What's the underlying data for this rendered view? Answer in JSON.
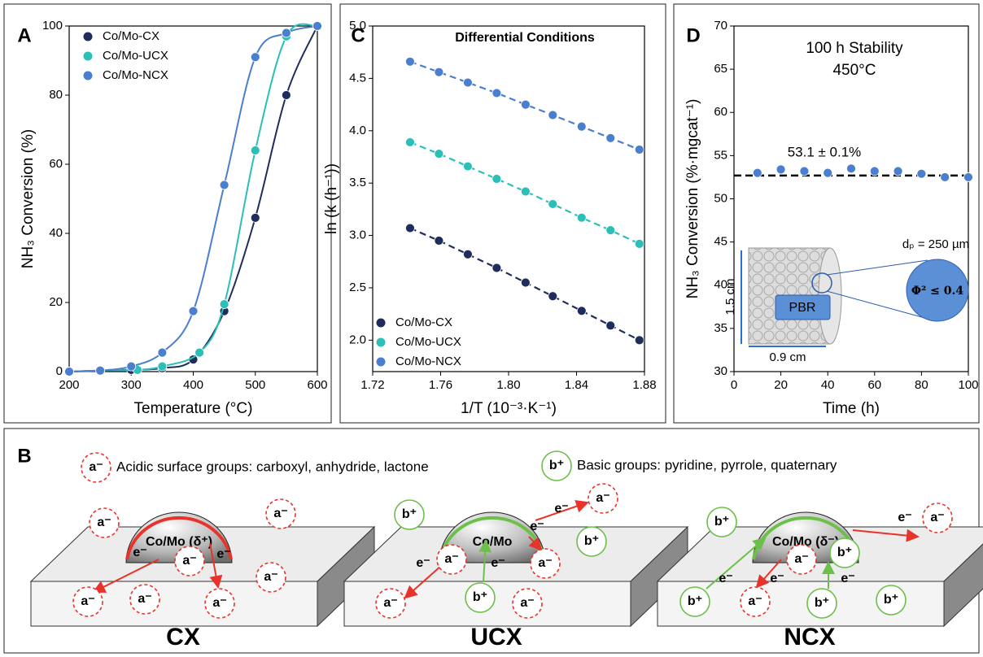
{
  "chart_data": [
    {
      "type": "line",
      "panel": "A",
      "xlabel": "Temperature (°C)",
      "ylabel": "NH₃ Conversion (%)",
      "xlim": [
        200,
        600
      ],
      "ylim": [
        0,
        100
      ],
      "xticks": [
        200,
        300,
        400,
        500,
        600
      ],
      "yticks": [
        0,
        20,
        40,
        60,
        80,
        100
      ],
      "legend": "upper left",
      "series": [
        {
          "name": "Co/Mo-CX",
          "color": "#1f2d5c",
          "x": [
            200,
            250,
            300,
            350,
            400,
            450,
            500,
            550,
            600
          ],
          "values": [
            0,
            0.3,
            0.5,
            1,
            3.5,
            17.5,
            44.5,
            80,
            100
          ]
        },
        {
          "name": "Co/Mo-UCX",
          "color": "#2bbfb8",
          "x": [
            200,
            250,
            310,
            350,
            410,
            450,
            500,
            550,
            600
          ],
          "values": [
            0,
            0.3,
            0.5,
            1.5,
            5.5,
            19.5,
            64,
            97,
            100
          ]
        },
        {
          "name": "Co/Mo-NCX",
          "color": "#4a7fcf",
          "x": [
            200,
            250,
            300,
            350,
            400,
            450,
            500,
            550,
            600
          ],
          "values": [
            0,
            0.3,
            1.5,
            5.5,
            17.5,
            54,
            91,
            98,
            100
          ]
        }
      ]
    },
    {
      "type": "scatter",
      "panel": "C",
      "title": "Differential Conditions",
      "xlabel": "1/T (10⁻³·K⁻¹)",
      "ylabel": "ln (k (h⁻¹))",
      "xlim": [
        1.72,
        1.88
      ],
      "ylim": [
        1.7,
        5.0
      ],
      "xticks": [
        1.72,
        1.76,
        {
          "value": 1.8,
          "label": "1.80"
        },
        1.84,
        1.88
      ],
      "yticks": [
        {
          "value": 2,
          "label": "2.0"
        },
        2.5,
        {
          "value": 3,
          "label": "3.0"
        },
        3.5,
        {
          "value": 4,
          "label": "4.0"
        },
        4.5,
        {
          "value": 5,
          "label": "5.0"
        }
      ],
      "legend": "lower left",
      "fit": true,
      "x": [
        1.742,
        1.759,
        1.776,
        1.793,
        1.81,
        1.826,
        1.843,
        1.86,
        1.877
      ],
      "series": [
        {
          "name": "Co/Mo-CX",
          "color": "#1f2d5c",
          "values": [
            3.07,
            2.95,
            2.82,
            2.69,
            2.55,
            2.42,
            2.28,
            2.14,
            2.0
          ]
        },
        {
          "name": "Co/Mo-UCX",
          "color": "#2bbfb8",
          "values": [
            3.89,
            3.78,
            3.66,
            3.54,
            3.42,
            3.3,
            3.17,
            3.05,
            2.92
          ]
        },
        {
          "name": "Co/Mo-NCX",
          "color": "#4a7fcf",
          "values": [
            4.66,
            4.56,
            4.46,
            4.36,
            4.25,
            4.15,
            4.04,
            3.93,
            3.82
          ]
        }
      ]
    },
    {
      "type": "scatter",
      "panel": "D",
      "xlabel": "Time (h)",
      "ylabel": "NH₃ Conversion (%·mgcat⁻¹)",
      "xlim": [
        0,
        100
      ],
      "ylim": [
        30,
        70
      ],
      "xticks": [
        0,
        20,
        40,
        60,
        80,
        100
      ],
      "yticks": [
        30,
        35,
        40,
        45,
        50,
        55,
        60,
        65,
        70
      ],
      "color": "#4a7fcf",
      "x": [
        10,
        20,
        30,
        40,
        50,
        60,
        70,
        80,
        90,
        100
      ],
      "values": [
        53.0,
        53.4,
        53.2,
        53.0,
        53.5,
        53.2,
        53.2,
        52.9,
        52.5,
        52.5
      ],
      "reference_line": 52.7,
      "annotations": [
        "100 h Stability",
        "450°C",
        "53.1 ± 0.1%"
      ],
      "inset": {
        "height": "1.5 cm",
        "width": "0.9 cm",
        "label": "PBR",
        "particle": "dₚ = 250 µm",
        "criterion": "Φ² ≤ 0.4"
      }
    }
  ],
  "diagram": {
    "panel": "B",
    "legend": [
      {
        "badge": "a⁻",
        "text": "Acidic surface groups: carboxyl, anhydride, lactone"
      },
      {
        "badge": "b⁺",
        "text": "Basic groups: pyridine, pyrrole, quaternary"
      }
    ],
    "supports": [
      {
        "name": "CX",
        "particle": "Co/Mo (δ⁺)",
        "groups": [
          "a⁻",
          "a⁻",
          "a⁻",
          "a⁻",
          "a⁻",
          "a⁻",
          "a⁻"
        ],
        "electrons": [
          "e⁻",
          "e⁻"
        ]
      },
      {
        "name": "UCX",
        "particle": "Co/Mo",
        "groups": [
          "b⁺",
          "b⁺",
          "b⁺",
          "a⁻",
          "a⁻",
          "a⁻",
          "a⁻",
          "a⁻"
        ],
        "electrons": [
          "e⁻",
          "e⁻",
          "e⁻",
          "e⁻"
        ]
      },
      {
        "name": "NCX",
        "particle": "Co/Mo (δ⁻)",
        "groups": [
          "b⁺",
          "b⁺",
          "b⁺",
          "b⁺",
          "b⁺",
          "a⁻",
          "a⁻",
          "a⁻"
        ],
        "electrons": [
          "e⁻",
          "e⁻",
          "e⁻",
          "e⁻"
        ]
      }
    ]
  }
}
